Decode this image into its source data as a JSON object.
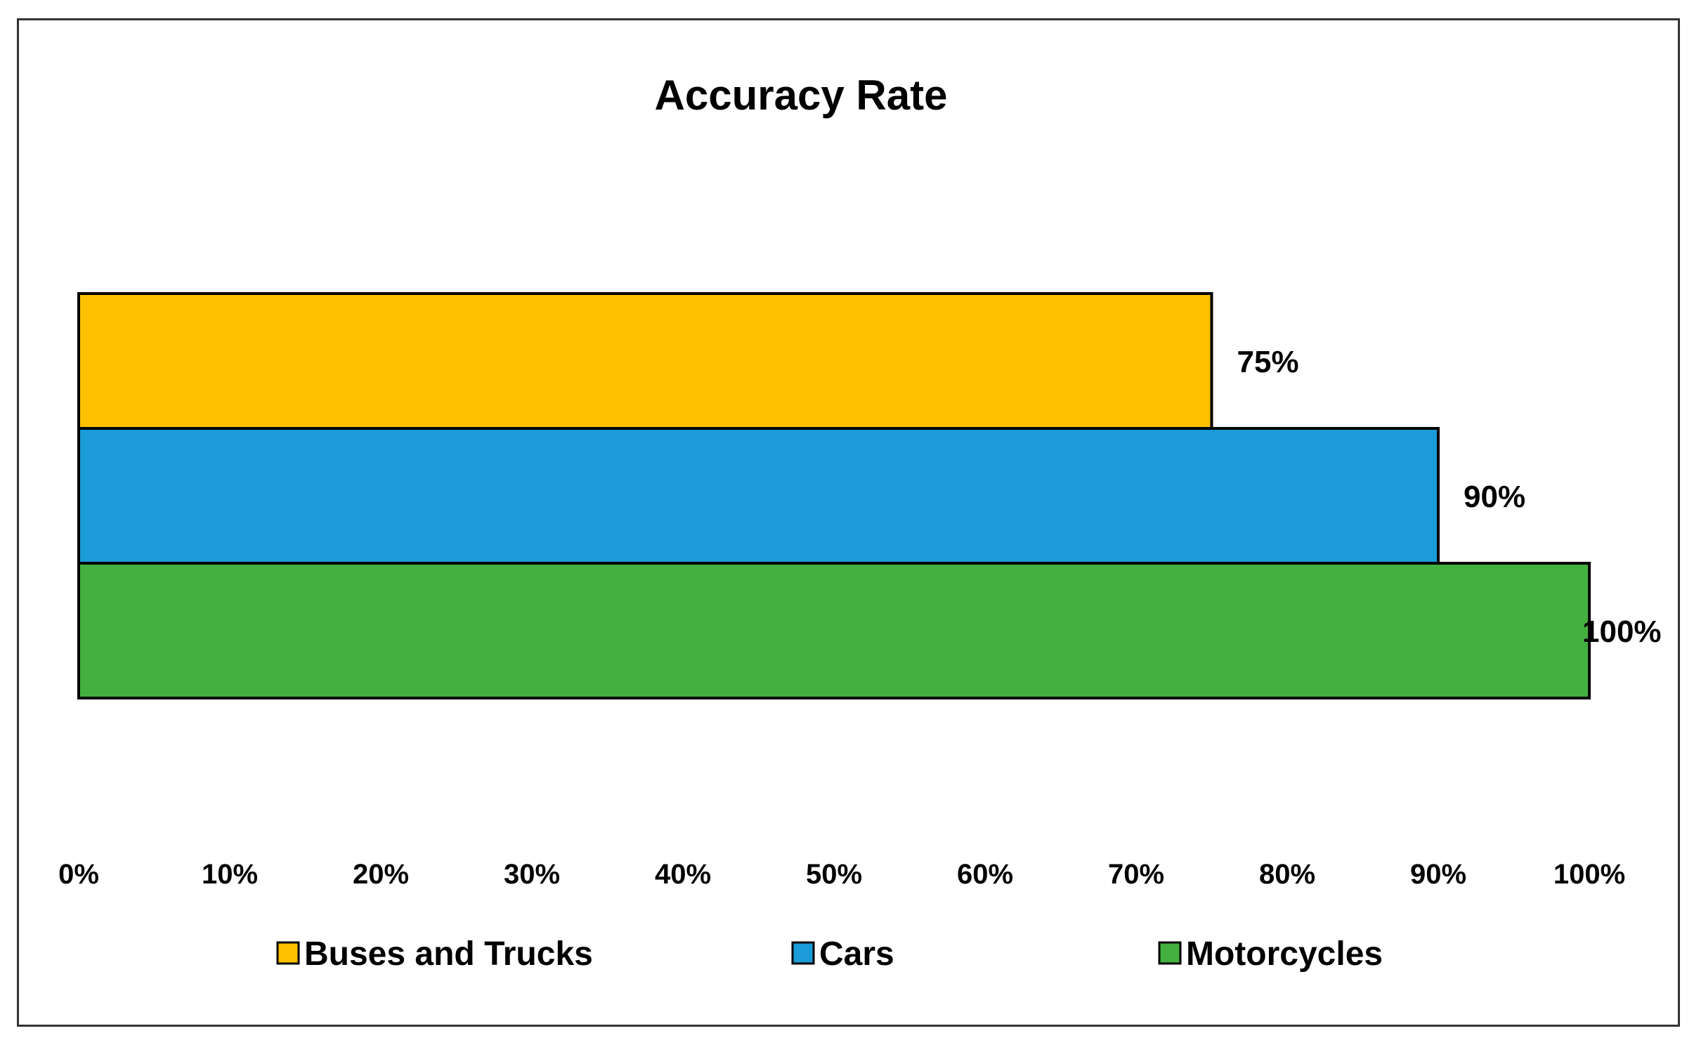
{
  "chart_data": {
    "type": "bar",
    "orientation": "horizontal",
    "title": "Accuracy Rate",
    "xlabel": "",
    "ylabel": "",
    "xlim": [
      0,
      100
    ],
    "ticks": [
      "0%",
      "10%",
      "20%",
      "30%",
      "40%",
      "50%",
      "60%",
      "70%",
      "80%",
      "90%",
      "100%"
    ],
    "grid": false,
    "legend_position": "bottom",
    "series": [
      {
        "name": "Buses and Trucks",
        "value": 75,
        "label": "75%",
        "color": "#FFC000"
      },
      {
        "name": "Cars",
        "value": 90,
        "label": "90%",
        "color": "#1B9BD7"
      },
      {
        "name": "Motorcycles",
        "value": 100,
        "label": "100%",
        "color": "#43B03F"
      }
    ]
  }
}
